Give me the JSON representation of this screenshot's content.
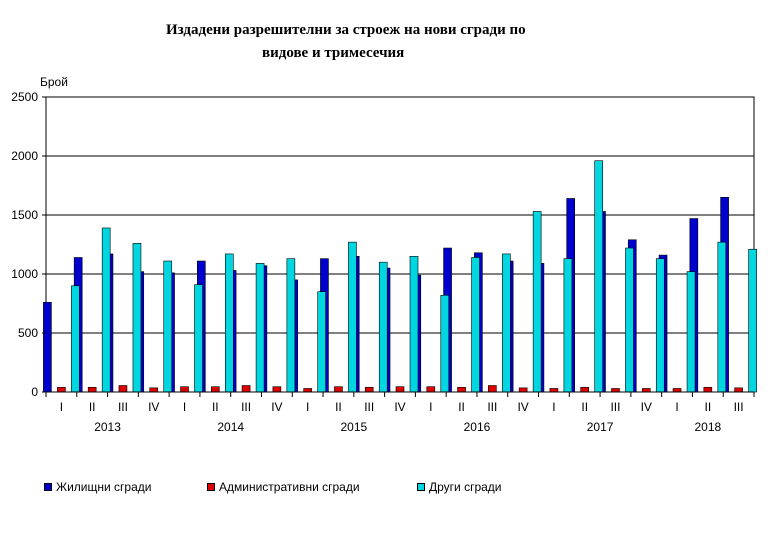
{
  "chart_data": {
    "type": "bar",
    "title_line1": "Издадени разрешителни за строеж на нови сгради по",
    "title_line2": "видове и тримесечия",
    "ylabel": "Брой",
    "ylim": [
      0,
      2500
    ],
    "yticks": [
      0,
      500,
      1000,
      1500,
      2000,
      2500
    ],
    "grid": true,
    "legend_position": "bottom",
    "categories": [
      "I",
      "II",
      "III",
      "IV",
      "I",
      "II",
      "III",
      "IV",
      "I",
      "II",
      "III",
      "IV",
      "I",
      "II",
      "III",
      "IV",
      "I",
      "II",
      "III",
      "IV",
      "I",
      "II",
      "III"
    ],
    "years": [
      {
        "label": "2013",
        "start": 0,
        "end": 3
      },
      {
        "label": "2014",
        "start": 4,
        "end": 7
      },
      {
        "label": "2015",
        "start": 8,
        "end": 11
      },
      {
        "label": "2016",
        "start": 12,
        "end": 15
      },
      {
        "label": "2017",
        "start": 16,
        "end": 19
      },
      {
        "label": "2018",
        "start": 20,
        "end": 22
      }
    ],
    "series": [
      {
        "name": "Жилищни сгради",
        "color": "#0000cc",
        "values": [
          760,
          1140,
          1170,
          1020,
          1010,
          1110,
          1030,
          1070,
          950,
          1130,
          1150,
          1050,
          990,
          1220,
          1180,
          1110,
          1090,
          1640,
          1530,
          1290,
          1160,
          1470,
          1650
        ]
      },
      {
        "name": "Административни сгради",
        "color": "#dd0000",
        "values": [
          40,
          40,
          55,
          35,
          45,
          45,
          55,
          45,
          30,
          45,
          40,
          45,
          45,
          40,
          55,
          35,
          30,
          40,
          30,
          30,
          30,
          40,
          35
        ]
      },
      {
        "name": "Други сгради",
        "color": "#00d6e0",
        "values": [
          900,
          1390,
          1260,
          1110,
          910,
          1170,
          1090,
          1130,
          850,
          1270,
          1100,
          1150,
          820,
          1140,
          1170,
          1530,
          1130,
          1960,
          1220,
          1130,
          1020,
          1270,
          1210
        ]
      }
    ]
  }
}
